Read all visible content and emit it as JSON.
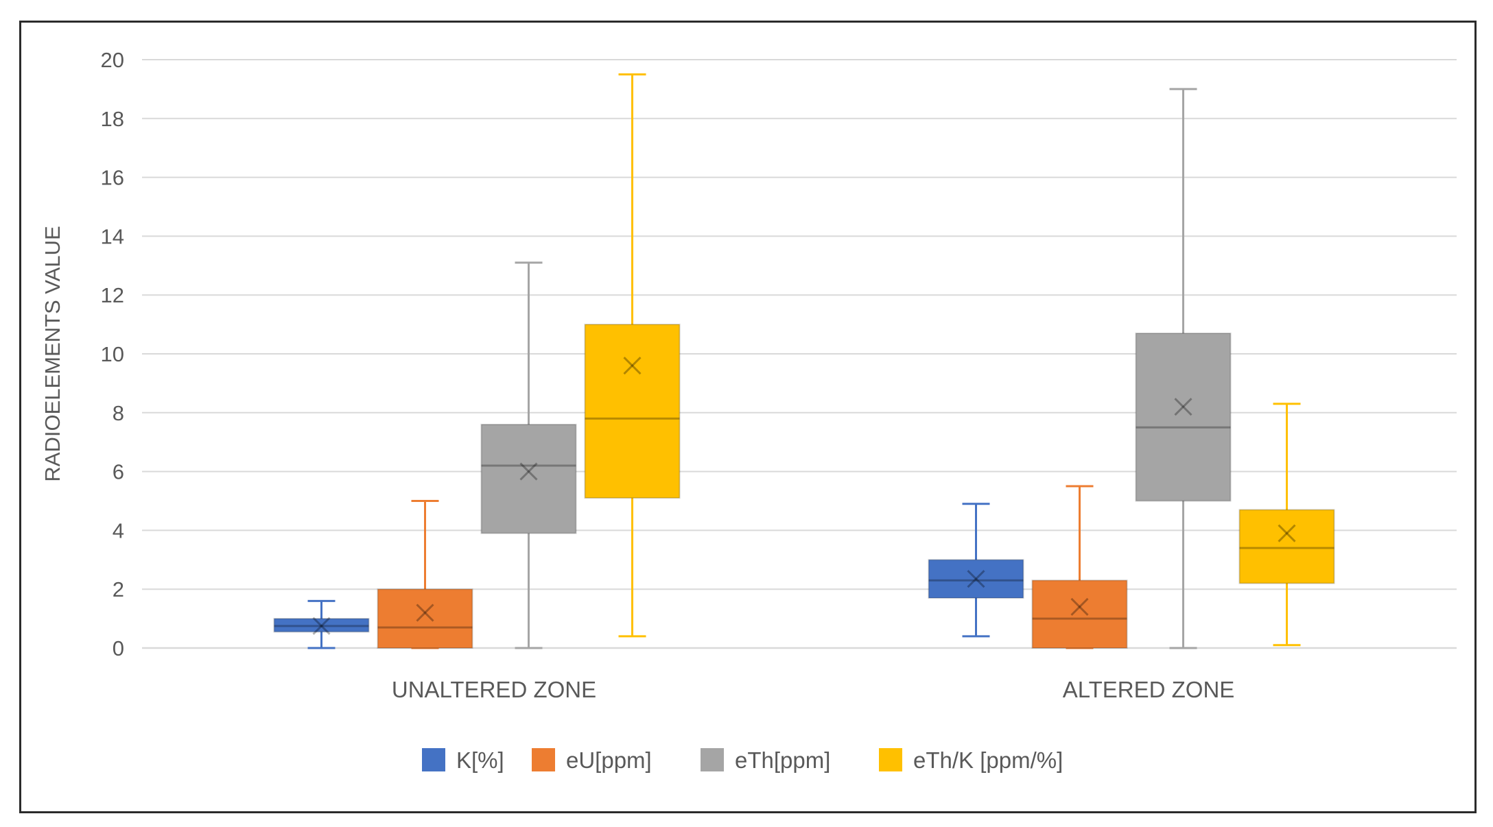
{
  "chart_data": {
    "type": "box",
    "title": "",
    "ylabel": "RADIOELEMENTS VALUE",
    "xlabel": "",
    "ylim": [
      0,
      20
    ],
    "yticks": [
      0,
      2,
      4,
      6,
      8,
      10,
      12,
      14,
      16,
      18,
      20
    ],
    "grid": true,
    "legend_position": "bottom",
    "categories": [
      "UNALTERED ZONE",
      "ALTERED ZONE"
    ],
    "series": [
      {
        "name": "K[%]",
        "color": "#4472c4",
        "stats": [
          {
            "min": 0.0,
            "q1": 0.55,
            "median": 0.75,
            "q3": 1.0,
            "max": 1.6,
            "mean": 0.75
          },
          {
            "min": 0.4,
            "q1": 1.7,
            "median": 2.3,
            "q3": 3.0,
            "max": 4.9,
            "mean": 2.35
          }
        ]
      },
      {
        "name": "eU[ppm]",
        "color": "#ed7d31",
        "stats": [
          {
            "min": 0.0,
            "q1": 0.0,
            "median": 0.7,
            "q3": 2.0,
            "max": 5.0,
            "mean": 1.2
          },
          {
            "min": 0.0,
            "q1": 0.0,
            "median": 1.0,
            "q3": 2.3,
            "max": 5.5,
            "mean": 1.4
          }
        ]
      },
      {
        "name": "eTh[ppm]",
        "color": "#a5a5a5",
        "stats": [
          {
            "min": 0.0,
            "q1": 3.9,
            "median": 6.2,
            "q3": 7.6,
            "max": 13.1,
            "mean": 6.0
          },
          {
            "min": 0.0,
            "q1": 5.0,
            "median": 7.5,
            "q3": 10.7,
            "max": 19.0,
            "mean": 8.2
          }
        ]
      },
      {
        "name": "eTh/K [ppm/%]",
        "color": "#ffc000",
        "stats": [
          {
            "min": 0.4,
            "q1": 5.1,
            "median": 7.8,
            "q3": 11.0,
            "max": 19.5,
            "mean": 9.6
          },
          {
            "min": 0.1,
            "q1": 2.2,
            "median": 3.4,
            "q3": 4.7,
            "max": 8.3,
            "mean": 3.9
          }
        ]
      }
    ]
  }
}
